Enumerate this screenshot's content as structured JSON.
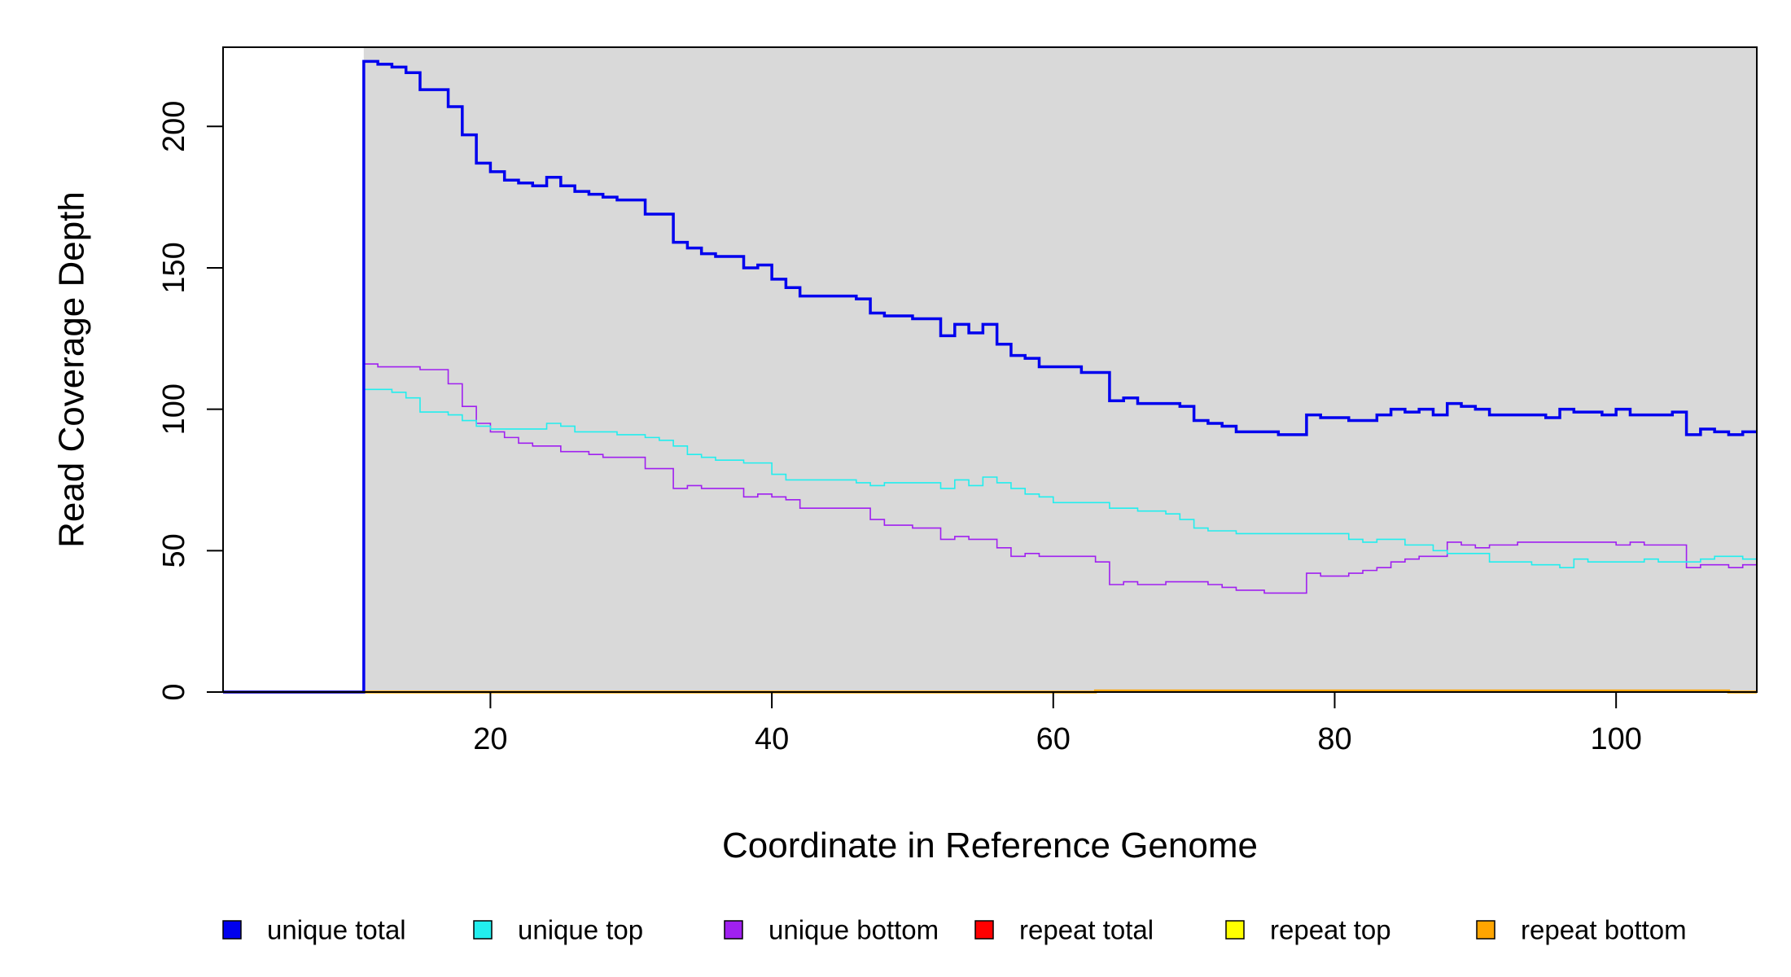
{
  "chart_data": {
    "type": "line",
    "step": true,
    "xlabel": "Coordinate in Reference Genome",
    "ylabel": "Read Coverage Depth",
    "xlim": [
      1,
      110
    ],
    "ylim": [
      0,
      228
    ],
    "x_ticks": [
      20,
      40,
      60,
      80,
      100
    ],
    "y_ticks": [
      0,
      50,
      100,
      150,
      200
    ],
    "grid": false,
    "shaded_region": {
      "x_start": 11,
      "x_end": 110,
      "color": "#d9d9d9"
    },
    "legend_position": "bottom",
    "series": [
      {
        "name": "unique total",
        "color": "#0000ee",
        "line_weight": "bold",
        "points": [
          [
            1,
            0
          ],
          [
            11,
            223
          ],
          [
            12,
            222
          ],
          [
            13,
            221
          ],
          [
            14,
            219
          ],
          [
            15,
            213
          ],
          [
            17,
            207
          ],
          [
            18,
            197
          ],
          [
            19,
            187
          ],
          [
            20,
            184
          ],
          [
            21,
            181
          ],
          [
            22,
            180
          ],
          [
            23,
            179
          ],
          [
            24,
            182
          ],
          [
            25,
            179
          ],
          [
            26,
            177
          ],
          [
            27,
            176
          ],
          [
            28,
            175
          ],
          [
            29,
            174
          ],
          [
            31,
            169
          ],
          [
            33,
            159
          ],
          [
            34,
            157
          ],
          [
            35,
            155
          ],
          [
            36,
            154
          ],
          [
            38,
            150
          ],
          [
            39,
            151
          ],
          [
            40,
            146
          ],
          [
            41,
            143
          ],
          [
            42,
            140
          ],
          [
            46,
            139
          ],
          [
            47,
            134
          ],
          [
            48,
            133
          ],
          [
            50,
            132
          ],
          [
            52,
            126
          ],
          [
            53,
            130
          ],
          [
            54,
            127
          ],
          [
            55,
            130
          ],
          [
            56,
            123
          ],
          [
            57,
            119
          ],
          [
            58,
            118
          ],
          [
            59,
            115
          ],
          [
            62,
            113
          ],
          [
            64,
            103
          ],
          [
            65,
            104
          ],
          [
            66,
            102
          ],
          [
            69,
            101
          ],
          [
            70,
            96
          ],
          [
            71,
            95
          ],
          [
            72,
            94
          ],
          [
            73,
            92
          ],
          [
            76,
            91
          ],
          [
            78,
            98
          ],
          [
            79,
            97
          ],
          [
            81,
            96
          ],
          [
            83,
            98
          ],
          [
            84,
            100
          ],
          [
            85,
            99
          ],
          [
            86,
            100
          ],
          [
            87,
            98
          ],
          [
            88,
            102
          ],
          [
            89,
            101
          ],
          [
            90,
            100
          ],
          [
            91,
            98
          ],
          [
            95,
            97
          ],
          [
            96,
            100
          ],
          [
            97,
            99
          ],
          [
            99,
            98
          ],
          [
            100,
            100
          ],
          [
            101,
            98
          ],
          [
            104,
            99
          ],
          [
            105,
            91
          ],
          [
            106,
            93
          ],
          [
            107,
            92
          ],
          [
            108,
            91
          ],
          [
            109,
            92
          ],
          [
            110,
            92
          ]
        ]
      },
      {
        "name": "unique top",
        "color": "#22eeee",
        "line_weight": "thin",
        "points": [
          [
            1,
            0
          ],
          [
            11,
            107
          ],
          [
            13,
            106
          ],
          [
            14,
            104
          ],
          [
            15,
            99
          ],
          [
            17,
            98
          ],
          [
            18,
            96
          ],
          [
            19,
            94
          ],
          [
            20,
            93
          ],
          [
            24,
            95
          ],
          [
            25,
            94
          ],
          [
            26,
            92
          ],
          [
            29,
            91
          ],
          [
            31,
            90
          ],
          [
            32,
            89
          ],
          [
            33,
            87
          ],
          [
            34,
            84
          ],
          [
            35,
            83
          ],
          [
            36,
            82
          ],
          [
            38,
            81
          ],
          [
            40,
            77
          ],
          [
            41,
            75
          ],
          [
            46,
            74
          ],
          [
            47,
            73
          ],
          [
            48,
            74
          ],
          [
            52,
            72
          ],
          [
            53,
            75
          ],
          [
            54,
            73
          ],
          [
            55,
            76
          ],
          [
            56,
            74
          ],
          [
            57,
            72
          ],
          [
            58,
            70
          ],
          [
            59,
            69
          ],
          [
            60,
            67
          ],
          [
            64,
            65
          ],
          [
            66,
            64
          ],
          [
            68,
            63
          ],
          [
            69,
            61
          ],
          [
            70,
            58
          ],
          [
            71,
            57
          ],
          [
            73,
            56
          ],
          [
            81,
            54
          ],
          [
            82,
            53
          ],
          [
            83,
            54
          ],
          [
            85,
            52
          ],
          [
            87,
            50
          ],
          [
            88,
            49
          ],
          [
            91,
            46
          ],
          [
            94,
            45
          ],
          [
            96,
            44
          ],
          [
            97,
            47
          ],
          [
            98,
            46
          ],
          [
            102,
            47
          ],
          [
            103,
            46
          ],
          [
            106,
            47
          ],
          [
            107,
            48
          ],
          [
            109,
            47
          ],
          [
            110,
            47
          ]
        ]
      },
      {
        "name": "unique bottom",
        "color": "#a020f0",
        "line_weight": "thin",
        "points": [
          [
            1,
            0
          ],
          [
            11,
            116
          ],
          [
            12,
            115
          ],
          [
            15,
            114
          ],
          [
            17,
            109
          ],
          [
            18,
            101
          ],
          [
            19,
            95
          ],
          [
            20,
            92
          ],
          [
            21,
            90
          ],
          [
            22,
            88
          ],
          [
            23,
            87
          ],
          [
            25,
            85
          ],
          [
            27,
            84
          ],
          [
            28,
            83
          ],
          [
            31,
            79
          ],
          [
            33,
            72
          ],
          [
            34,
            73
          ],
          [
            35,
            72
          ],
          [
            38,
            69
          ],
          [
            39,
            70
          ],
          [
            40,
            69
          ],
          [
            41,
            68
          ],
          [
            42,
            65
          ],
          [
            47,
            61
          ],
          [
            48,
            59
          ],
          [
            50,
            58
          ],
          [
            52,
            54
          ],
          [
            53,
            55
          ],
          [
            54,
            54
          ],
          [
            56,
            51
          ],
          [
            57,
            48
          ],
          [
            58,
            49
          ],
          [
            59,
            48
          ],
          [
            63,
            46
          ],
          [
            64,
            38
          ],
          [
            65,
            39
          ],
          [
            66,
            38
          ],
          [
            68,
            39
          ],
          [
            71,
            38
          ],
          [
            72,
            37
          ],
          [
            73,
            36
          ],
          [
            75,
            35
          ],
          [
            78,
            42
          ],
          [
            79,
            41
          ],
          [
            81,
            42
          ],
          [
            82,
            43
          ],
          [
            83,
            44
          ],
          [
            84,
            46
          ],
          [
            85,
            47
          ],
          [
            86,
            48
          ],
          [
            88,
            53
          ],
          [
            89,
            52
          ],
          [
            90,
            51
          ],
          [
            91,
            52
          ],
          [
            92,
            52
          ],
          [
            93,
            53
          ],
          [
            100,
            52
          ],
          [
            101,
            53
          ],
          [
            102,
            52
          ],
          [
            105,
            44
          ],
          [
            106,
            45
          ],
          [
            108,
            44
          ],
          [
            109,
            45
          ],
          [
            110,
            45
          ]
        ]
      },
      {
        "name": "repeat total",
        "color": "#ff0000",
        "line_weight": "thin",
        "points": [
          [
            1,
            0
          ],
          [
            110,
            0
          ]
        ]
      },
      {
        "name": "repeat top",
        "color": "#ffff00",
        "line_weight": "thin",
        "points": [
          [
            1,
            0
          ],
          [
            110,
            0
          ]
        ]
      },
      {
        "name": "repeat bottom",
        "color": "#ffa500",
        "line_weight": "bold",
        "points": [
          [
            1,
            0
          ],
          [
            63,
            0
          ],
          [
            63,
            0.4
          ],
          [
            108,
            0.4
          ],
          [
            108,
            0
          ],
          [
            110,
            0
          ]
        ]
      }
    ]
  }
}
